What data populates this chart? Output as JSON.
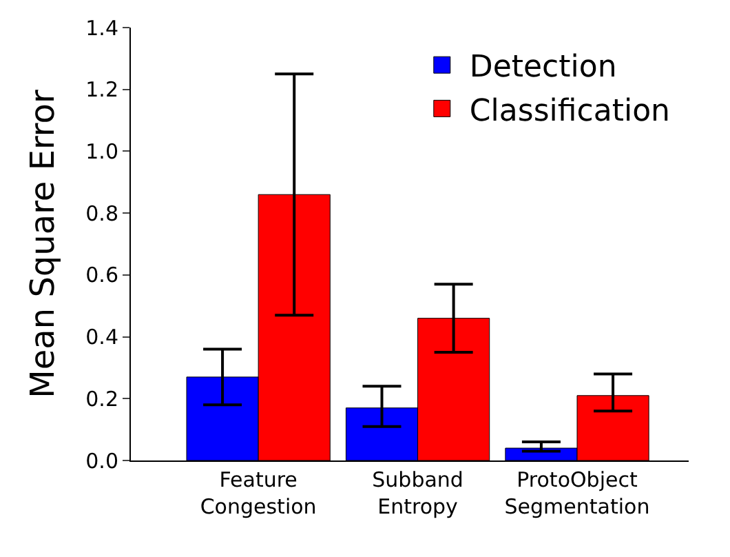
{
  "chart_data": {
    "type": "bar",
    "ylabel": "Mean Square Error",
    "categories": [
      "Feature\nCongestion",
      "Subband\nEntropy",
      "ProtoObject\nSegmentation"
    ],
    "series": [
      {
        "name": "Detection",
        "color": "#0000ff",
        "values": [
          0.27,
          0.17,
          0.04
        ],
        "errors": [
          [
            0.18,
            0.36
          ],
          [
            0.11,
            0.24
          ],
          [
            0.03,
            0.06
          ]
        ]
      },
      {
        "name": "Classification",
        "color": "#ff0000",
        "values": [
          0.86,
          0.46,
          0.21
        ],
        "errors": [
          [
            0.47,
            1.25
          ],
          [
            0.35,
            0.57
          ],
          [
            0.16,
            0.28
          ]
        ]
      }
    ],
    "ylim": [
      0,
      1.4
    ],
    "yticks": [
      {
        "value": 0,
        "label": "0.0"
      },
      0.2,
      0.4,
      0.6,
      0.8,
      {
        "value": 1,
        "label": "1.0"
      },
      1.2,
      1.4
    ],
    "legend": "top right"
  }
}
